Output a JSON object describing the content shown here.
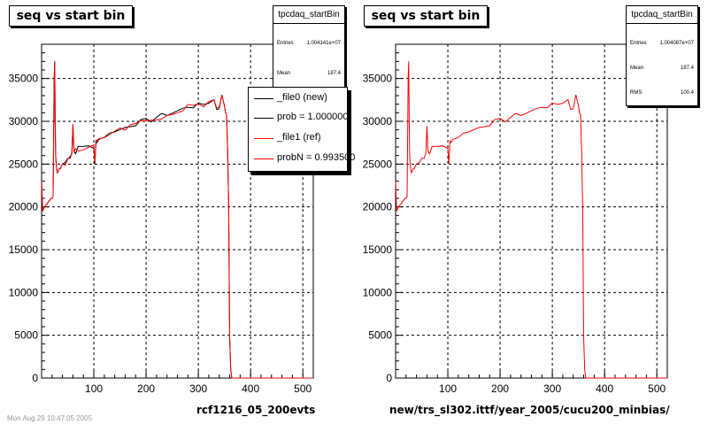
{
  "chart_data": [
    {
      "type": "line",
      "title": "seq vs start bin",
      "caption": "rcf1216_05_200evts",
      "xlim": [
        0,
        520
      ],
      "ylim": [
        0,
        39000
      ],
      "x_ticks": [
        100,
        200,
        300,
        400,
        500
      ],
      "y_ticks": [
        0,
        5000,
        10000,
        15000,
        20000,
        25000,
        30000,
        35000
      ],
      "grid": true,
      "stats": {
        "name": "tpcdaq_startBin",
        "rows": [
          {
            "label": "Entries",
            "value": "1.004141e+07"
          },
          {
            "label": "Mean",
            "value": "187.4"
          }
        ]
      },
      "legend": {
        "placement": "top-right",
        "entries": [
          {
            "label": "_file0 (new)",
            "color": "#000000"
          },
          {
            "label": "prob = 1.000000",
            "color": "#000000"
          },
          {
            "label": "_file1 (ref)",
            "color": "#ff0000"
          },
          {
            "label": "probN = 0.993500",
            "color": "#ff0000"
          }
        ]
      },
      "series": [
        {
          "name": "_file0 (new)",
          "color": "#000000"
        },
        {
          "name": "_file1 (ref)",
          "color": "#ff0000"
        }
      ]
    },
    {
      "type": "line",
      "title": "seq vs start bin",
      "caption": "new/trs_sl302.ittf/year_2005/cucu200_minbias/",
      "xlim": [
        0,
        520
      ],
      "ylim": [
        0,
        39000
      ],
      "x_ticks": [
        100,
        200,
        300,
        400,
        500
      ],
      "y_ticks": [
        0,
        5000,
        10000,
        15000,
        20000,
        25000,
        30000,
        35000
      ],
      "grid": true,
      "stats": {
        "name": "tpcdaq_startBin",
        "rows": [
          {
            "label": "Entries",
            "value": "1.004087e+07"
          },
          {
            "label": "Mean",
            "value": "187.4"
          },
          {
            "label": "RMS",
            "value": "100.4"
          }
        ]
      },
      "series": [
        {
          "name": "",
          "color": "#ff0000"
        }
      ]
    }
  ],
  "profile": {
    "x": [
      0,
      2,
      4,
      6,
      8,
      10,
      12,
      14,
      16,
      18,
      20,
      22,
      24,
      25,
      26,
      27,
      28,
      30,
      32,
      34,
      36,
      38,
      40,
      45,
      50,
      55,
      58,
      60,
      62,
      65,
      70,
      80,
      90,
      100,
      102,
      104,
      106,
      110,
      120,
      130,
      140,
      150,
      160,
      170,
      180,
      190,
      200,
      210,
      220,
      230,
      240,
      250,
      260,
      270,
      280,
      290,
      300,
      310,
      320,
      330,
      335,
      340,
      345,
      350,
      352,
      354,
      356,
      358,
      360,
      362,
      364,
      366,
      520
    ],
    "y": [
      23000,
      19500,
      19800,
      20000,
      20200,
      20300,
      20500,
      20700,
      20800,
      21000,
      21000,
      21200,
      35000,
      37000,
      30000,
      26000,
      25000,
      24000,
      24200,
      24500,
      24500,
      24800,
      25000,
      25200,
      25600,
      26000,
      26500,
      29500,
      26500,
      26500,
      26800,
      27000,
      27200,
      27000,
      24800,
      27600,
      27800,
      27900,
      28300,
      28500,
      29000,
      29000,
      29300,
      29600,
      29800,
      29900,
      30000,
      30200,
      30500,
      30600,
      30900,
      31000,
      31200,
      31400,
      31800,
      31800,
      31800,
      32000,
      32300,
      32500,
      31500,
      31700,
      32900,
      31800,
      31000,
      30800,
      26600,
      20000,
      4800,
      1000,
      0,
      0,
      0
    ]
  },
  "footer": "Mon Aug 29 10:47:05 2005"
}
